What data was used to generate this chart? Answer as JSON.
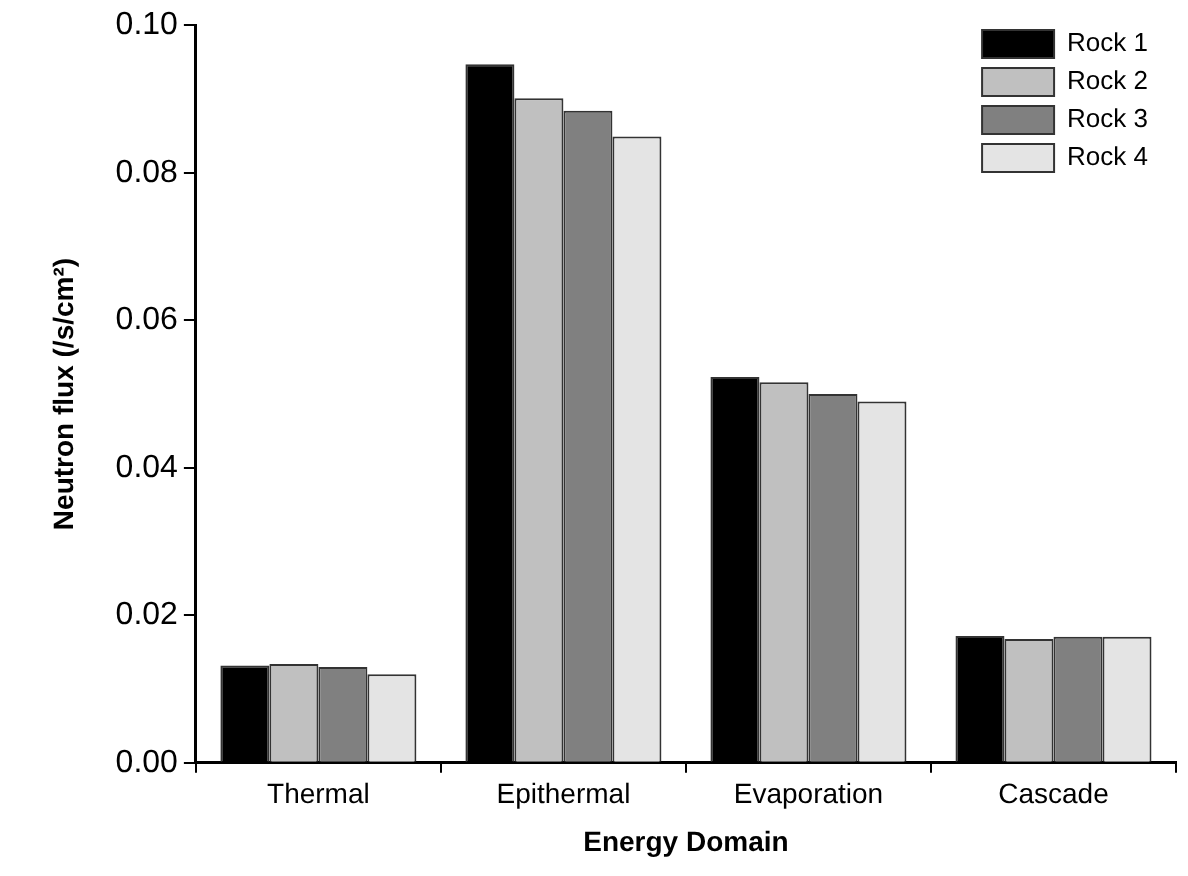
{
  "chart_data": {
    "type": "bar",
    "xlabel": "Energy Domain",
    "ylabel": "Neutron flux (/s/cm²)",
    "categories": [
      "Thermal",
      "Epithermal",
      "Evaporation",
      "Cascade"
    ],
    "series": [
      {
        "name": "Rock 1",
        "color": "#000000",
        "values": [
          0.0132,
          0.0947,
          0.0523,
          0.0172
        ]
      },
      {
        "name": "Rock 2",
        "color": "#c0c0c0",
        "values": [
          0.0134,
          0.0901,
          0.0516,
          0.0168
        ]
      },
      {
        "name": "Rock 3",
        "color": "#808080",
        "values": [
          0.013,
          0.0884,
          0.05,
          0.0171
        ]
      },
      {
        "name": "Rock 4",
        "color": "#e4e4e4",
        "values": [
          0.012,
          0.0849,
          0.049,
          0.0171
        ]
      }
    ],
    "ylim": [
      0,
      0.1
    ],
    "yticks": [
      {
        "value": 0,
        "label": "0.00"
      },
      {
        "value": 0.02,
        "label": "0.02"
      },
      {
        "value": 0.04,
        "label": "0.04"
      },
      {
        "value": 0.06,
        "label": "0.06"
      },
      {
        "value": 0.08,
        "label": "0.08"
      },
      {
        "value": 0.1,
        "label": "0.10"
      }
    ],
    "grid": false,
    "legend": "top right"
  }
}
